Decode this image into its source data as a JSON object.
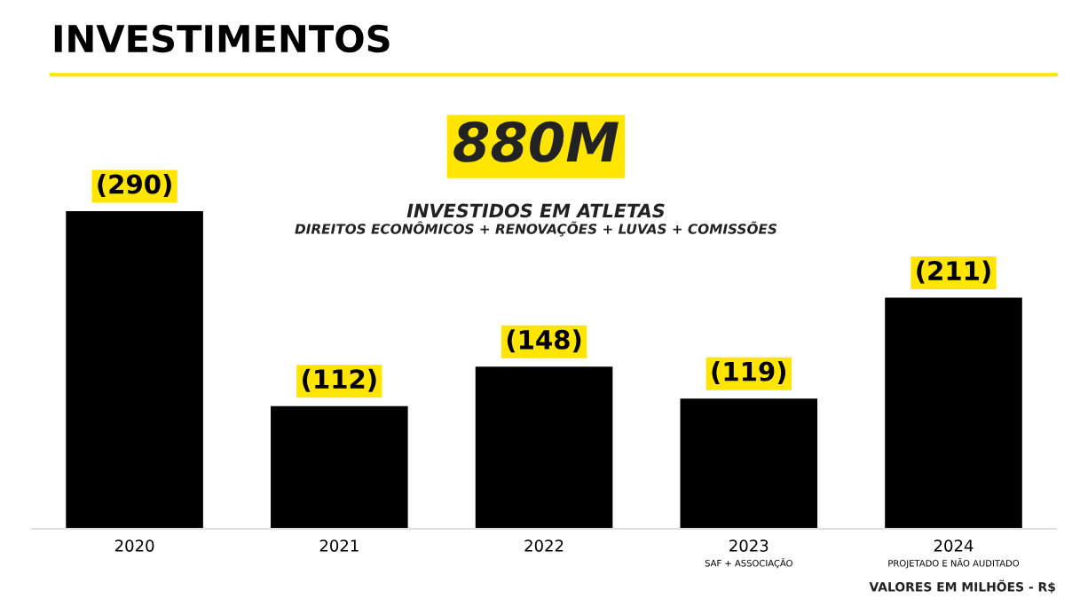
{
  "chart_data": {
    "type": "bar",
    "title": "INVESTIMENTOS",
    "categories": [
      "2020",
      "2021",
      "2022",
      "2023\nSAF + ASSOCIAÇÃO",
      "2024\nPROJETADO E NÃO AUDITADO"
    ],
    "series": [
      {
        "color": "#000000",
        "values": [
          290,
          112,
          148,
          119,
          211
        ],
        "value_labels": [
          "(290)",
          "(112)",
          "(148)",
          "(119)",
          "(211)"
        ]
      }
    ],
    "annotations": [
      "880M",
      "INVESTIDOS EM ATLETAS",
      "DIREITOS ECONÔMICOS + RENOVAÇÕES + LUVAS + COMISSÕES",
      "VALORES EM MILHÕES - R$"
    ],
    "grid": false,
    "legend": false
  }
}
